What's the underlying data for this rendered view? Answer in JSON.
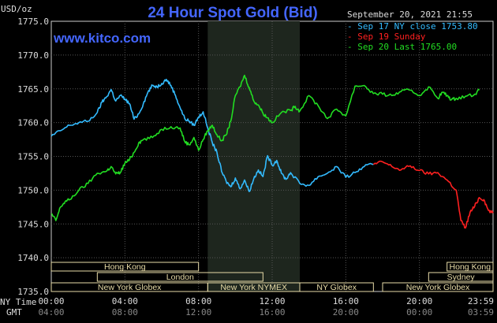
{
  "chart_data": {
    "type": "line",
    "title": "24 Hour Spot Gold (Bid)",
    "website": "www.kitco.com",
    "unit_label": "USD/oz",
    "datetime": "September 20, 2021 21:55",
    "ylim": [
      1735.0,
      1775.0
    ],
    "y_ticks": [
      "1735.0",
      "1740.0",
      "1745.0",
      "1750.0",
      "1755.0",
      "1760.0",
      "1765.0",
      "1770.0",
      "1775.0"
    ],
    "x_ticks_ny": [
      "00:00",
      "04:00",
      "08:00",
      "12:00",
      "16:00",
      "20:00",
      "23:59"
    ],
    "x_ticks_gmt": [
      "04:00",
      "08:00",
      "12:00",
      "16:00",
      "20:00",
      "00:00",
      "03:59"
    ],
    "x_axis_label_ny": "NY Time",
    "x_axis_label_gmt": "GMT",
    "grid": true,
    "legend_position": "top-right",
    "colors": {
      "sep17": "#33bbff",
      "sep19": "#ff2020",
      "sep20": "#22dd22",
      "axis_text": "#dddddd",
      "title": "#4466ff",
      "session_bar": "#e8dca8",
      "highlight": "#1e261e"
    },
    "highlight_hours": [
      8.5,
      13.5
    ],
    "series": [
      {
        "key": "sep17",
        "name": "Sep 17 NY close 1753.80",
        "x_hours": [
          0.0,
          0.5,
          1.0,
          1.5,
          2.0,
          2.5,
          2.75,
          3.0,
          3.25,
          3.5,
          3.75,
          4.0,
          4.25,
          4.5,
          4.75,
          5.0,
          5.25,
          5.5,
          5.75,
          6.0,
          6.25,
          6.5,
          6.75,
          7.0,
          7.25,
          7.5,
          7.75,
          8.0,
          8.25,
          8.5,
          8.75,
          9.0,
          9.25,
          9.5,
          9.75,
          10.0,
          10.25,
          10.5,
          10.75,
          11.0,
          11.25,
          11.5,
          11.75,
          12.0,
          12.25,
          12.5,
          12.75,
          13.0,
          13.5,
          14.0,
          14.5,
          15.0,
          15.5,
          16.0,
          16.5,
          17.0,
          17.5
        ],
        "values": [
          1758.0,
          1758.8,
          1759.6,
          1760.0,
          1760.2,
          1761.5,
          1763.0,
          1763.8,
          1764.9,
          1763.2,
          1764.0,
          1763.5,
          1762.8,
          1760.5,
          1761.3,
          1762.8,
          1764.5,
          1765.5,
          1765.3,
          1765.8,
          1766.4,
          1765.5,
          1764.0,
          1762.2,
          1760.6,
          1760.2,
          1759.6,
          1760.8,
          1761.6,
          1759.2,
          1757.0,
          1755.6,
          1752.8,
          1751.3,
          1750.5,
          1751.8,
          1750.2,
          1751.5,
          1749.8,
          1751.7,
          1753.0,
          1752.0,
          1755.1,
          1753.7,
          1754.4,
          1752.5,
          1751.6,
          1752.6,
          1751.0,
          1750.7,
          1752.0,
          1752.5,
          1753.5,
          1751.9,
          1752.6,
          1753.5,
          1753.8
        ]
      },
      {
        "key": "sep19",
        "name": "Sep 19 Sunday",
        "x_hours": [
          17.5,
          18.0,
          18.5,
          19.0,
          19.5,
          20.0,
          20.5,
          21.0,
          21.5,
          22.0,
          22.25,
          22.5,
          22.75,
          23.0,
          23.25,
          23.5,
          23.75,
          24.0
        ],
        "values": [
          1753.8,
          1754.2,
          1753.5,
          1753.0,
          1753.6,
          1752.9,
          1752.4,
          1752.6,
          1751.5,
          1750.0,
          1745.5,
          1744.4,
          1746.7,
          1747.6,
          1748.9,
          1748.6,
          1747.0,
          1746.6
        ]
      },
      {
        "key": "sep20",
        "name": "Sep 20 Last 1765.00",
        "x_hours": [
          0.0,
          0.25,
          0.5,
          0.75,
          1.0,
          1.5,
          2.0,
          2.5,
          3.0,
          3.25,
          3.5,
          3.75,
          4.0,
          4.25,
          4.5,
          4.75,
          5.0,
          5.5,
          6.0,
          6.5,
          7.0,
          7.25,
          7.5,
          7.75,
          8.0,
          8.25,
          8.5,
          8.75,
          9.0,
          9.25,
          9.5,
          9.75,
          10.0,
          10.25,
          10.5,
          10.75,
          11.0,
          11.25,
          11.5,
          11.75,
          12.0,
          12.5,
          13.0,
          13.25,
          13.5,
          14.0,
          14.5,
          15.0,
          15.5,
          16.0,
          16.5,
          17.0,
          17.5,
          18.0,
          18.5,
          19.0,
          19.5,
          20.0,
          20.5,
          21.0,
          21.25,
          21.5,
          21.75,
          22.0,
          22.5,
          23.0,
          23.25
        ],
        "values": [
          1746.5,
          1745.5,
          1747.5,
          1748.3,
          1748.6,
          1750.0,
          1751.0,
          1752.5,
          1752.8,
          1753.5,
          1752.4,
          1752.6,
          1754.0,
          1754.5,
          1755.6,
          1757.0,
          1757.5,
          1757.8,
          1759.0,
          1759.4,
          1759.2,
          1757.2,
          1756.7,
          1757.8,
          1755.9,
          1757.5,
          1758.8,
          1759.6,
          1758.2,
          1757.3,
          1758.2,
          1760.2,
          1764.0,
          1765.3,
          1767.0,
          1765.2,
          1763.2,
          1762.6,
          1761.4,
          1760.7,
          1760.0,
          1761.5,
          1761.8,
          1762.4,
          1761.7,
          1764.0,
          1762.5,
          1760.6,
          1762.0,
          1761.0,
          1765.4,
          1765.5,
          1764.3,
          1764.2,
          1764.0,
          1764.6,
          1764.8,
          1764.0,
          1765.3,
          1763.6,
          1764.5,
          1764.0,
          1763.4,
          1763.6,
          1763.9,
          1764.2,
          1764.8
        ]
      }
    ],
    "sessions": [
      {
        "label": "Hong Kong",
        "start": 0.0,
        "end": 8.0,
        "row": 1
      },
      {
        "label": "London",
        "start": 2.5,
        "end": 11.5,
        "row": 2
      },
      {
        "label": "New York Globex",
        "start": 0.0,
        "end": 8.5,
        "row": 3
      },
      {
        "label": "New York NYMEX",
        "start": 8.5,
        "end": 13.5,
        "row": 3
      },
      {
        "label": "NY Globex",
        "start": 13.5,
        "end": 17.5,
        "row": 3
      },
      {
        "label": "Hong Kong",
        "start": 21.5,
        "end": 24.0,
        "row": 1
      },
      {
        "label": "Sydney",
        "start": 20.5,
        "end": 24.0,
        "row": 2
      },
      {
        "label": "New York Globex",
        "start": 18.0,
        "end": 24.0,
        "row": 3
      }
    ]
  }
}
